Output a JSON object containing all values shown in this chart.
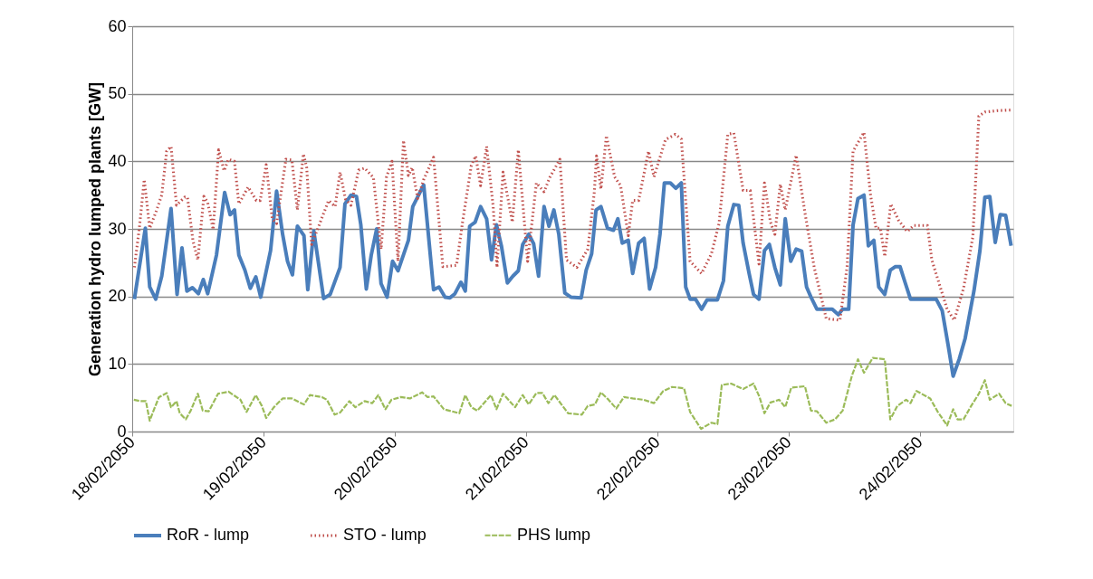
{
  "chart_data": {
    "type": "line",
    "ylabel": "Generation hydro lumped plants [GW]",
    "xlim": [
      "2050-02-18T00:00",
      "2050-02-24T17:06"
    ],
    "xticks": [
      {
        "value": "2050-02-18",
        "label": "18/02/2050"
      },
      {
        "value": "2050-02-19",
        "label": "19/02/2050"
      },
      {
        "value": "2050-02-20",
        "label": "20/02/2050"
      },
      {
        "value": "2050-02-21",
        "label": "21/02/2050"
      },
      {
        "value": "2050-02-22",
        "label": "22/02/2050"
      },
      {
        "value": "2050-02-23",
        "label": "23/02/2050"
      },
      {
        "value": "2050-02-24",
        "label": "24/02/2050"
      }
    ],
    "ylim": [
      0,
      60
    ],
    "yticks": [
      0,
      10,
      20,
      30,
      40,
      50,
      60
    ],
    "grid": "y",
    "legend": "bottom",
    "marker": "none",
    "series": [
      {
        "name": "RoR - lump",
        "color": "#4a7ebb",
        "line_style": "solid",
        "x": [
          "2050-02-18T00:24",
          "2050-02-18T02:24",
          "2050-02-18T03:12",
          "2050-02-18T04:18",
          "2050-02-18T05:24",
          "2050-02-18T07:06",
          "2050-02-18T08:12",
          "2050-02-18T09:06",
          "2050-02-18T10:00",
          "2050-02-18T11:00",
          "2050-02-18T12:06",
          "2050-02-18T13:00",
          "2050-02-18T13:48",
          "2050-02-18T15:24",
          "2050-02-18T16:54",
          "2050-02-18T17:54",
          "2050-02-18T18:42",
          "2050-02-18T19:30",
          "2050-02-18T20:36",
          "2050-02-18T21:36",
          "2050-02-18T22:36",
          "2050-02-18T23:30",
          "2050-02-19T01:18",
          "2050-02-19T02:24",
          "2050-02-19T03:30",
          "2050-02-19T04:24",
          "2050-02-19T05:18",
          "2050-02-19T06:12",
          "2050-02-19T07:24",
          "2050-02-19T08:06",
          "2050-02-19T09:12",
          "2050-02-19T11:00",
          "2050-02-19T12:12",
          "2050-02-19T14:00",
          "2050-02-19T14:54",
          "2050-02-19T16:00",
          "2050-02-19T17:00",
          "2050-02-19T17:48",
          "2050-02-19T18:48",
          "2050-02-19T19:42",
          "2050-02-19T20:42",
          "2050-02-19T21:30",
          "2050-02-19T22:36",
          "2050-02-19T23:36",
          "2050-02-20T00:36",
          "2050-02-20T02:30",
          "2050-02-20T03:18",
          "2050-02-20T05:18",
          "2050-02-20T07:06",
          "2050-02-20T08:06",
          "2050-02-20T09:12",
          "2050-02-20T10:06",
          "2050-02-20T11:00",
          "2050-02-20T12:06",
          "2050-02-20T12:54",
          "2050-02-20T13:42",
          "2050-02-20T14:42",
          "2050-02-20T15:42",
          "2050-02-20T16:48",
          "2050-02-20T17:42",
          "2050-02-20T18:36",
          "2050-02-20T19:30",
          "2050-02-20T20:36",
          "2050-02-20T21:36",
          "2050-02-20T22:36",
          "2050-02-20T23:24",
          "2050-02-21T00:30",
          "2050-02-21T01:24",
          "2050-02-21T02:18",
          "2050-02-21T03:18",
          "2050-02-21T04:12",
          "2050-02-21T05:06",
          "2050-02-21T06:00",
          "2050-02-21T07:06",
          "2050-02-21T08:12",
          "2050-02-21T10:06",
          "2050-02-21T11:00",
          "2050-02-21T12:00",
          "2050-02-21T12:48",
          "2050-02-21T13:42",
          "2050-02-21T14:54",
          "2050-02-21T16:00",
          "2050-02-21T16:48",
          "2050-02-21T17:36",
          "2050-02-21T18:42",
          "2050-02-21T19:30",
          "2050-02-21T20:36",
          "2050-02-21T21:36",
          "2050-02-21T22:36",
          "2050-02-21T23:42",
          "2050-02-22T00:30",
          "2050-02-22T01:18",
          "2050-02-22T02:24",
          "2050-02-22T03:24",
          "2050-02-22T04:24",
          "2050-02-22T05:12",
          "2050-02-22T06:00",
          "2050-02-22T07:00",
          "2050-02-22T08:06",
          "2050-02-22T09:06",
          "2050-02-22T11:00",
          "2050-02-22T12:06",
          "2050-02-22T12:54",
          "2050-02-22T14:00",
          "2050-02-22T14:54",
          "2050-02-22T15:42",
          "2050-02-22T16:48",
          "2050-02-22T17:36",
          "2050-02-22T18:36",
          "2050-02-22T19:36",
          "2050-02-22T20:30",
          "2050-02-22T21:30",
          "2050-02-22T22:30",
          "2050-02-22T23:24",
          "2050-02-23T00:24",
          "2050-02-23T01:24",
          "2050-02-23T02:24",
          "2050-02-23T03:18",
          "2050-02-23T04:06",
          "2050-02-23T05:12",
          "2050-02-23T08:00",
          "2050-02-23T09:06",
          "2050-02-23T09:54",
          "2050-02-23T11:00",
          "2050-02-23T11:48",
          "2050-02-23T12:42",
          "2050-02-23T13:48",
          "2050-02-23T14:36",
          "2050-02-23T15:36",
          "2050-02-23T16:30",
          "2050-02-23T17:36",
          "2050-02-23T18:36",
          "2050-02-23T19:30",
          "2050-02-23T20:24",
          "2050-02-23T21:18",
          "2050-02-23T22:18",
          "2050-02-24T03:00",
          "2050-02-24T04:06",
          "2050-02-24T05:12",
          "2050-02-24T06:06",
          "2050-02-24T07:12",
          "2050-02-24T08:18",
          "2050-02-24T09:54",
          "2050-02-24T11:00",
          "2050-02-24T11:54",
          "2050-02-24T12:48",
          "2050-02-24T13:48",
          "2050-02-24T14:42",
          "2050-02-24T15:42",
          "2050-02-24T16:42"
        ],
        "values": [
          19.6,
          30.1,
          21.4,
          19.6,
          23,
          33,
          20.3,
          27.2,
          20.8,
          21.3,
          20.4,
          22.5,
          20.4,
          26.1,
          35.4,
          32.1,
          32.8,
          26.1,
          23.9,
          21.2,
          22.9,
          19.9,
          26.8,
          35.6,
          29.2,
          25.2,
          23.2,
          30.4,
          29,
          21,
          29.7,
          19.7,
          20.3,
          24.3,
          33.7,
          35,
          34.8,
          30.6,
          21.1,
          26.1,
          30,
          21.9,
          19.9,
          25.2,
          23.8,
          28.3,
          33.3,
          36.5,
          21,
          21.4,
          19.9,
          19.8,
          20.4,
          22.1,
          20.8,
          30.4,
          31,
          33.3,
          31.5,
          25.4,
          30.6,
          27.5,
          22,
          23,
          23.8,
          27.7,
          29.2,
          27.8,
          23,
          33.3,
          30.4,
          32.8,
          29.2,
          20.5,
          19.9,
          19.8,
          23.9,
          26.3,
          32.8,
          33.3,
          30.1,
          29.8,
          31.5,
          27.9,
          28.3,
          23.4,
          27.9,
          28.6,
          21.1,
          24.3,
          29.2,
          36.8,
          36.8,
          36,
          36.8,
          21.4,
          19.6,
          19.6,
          18.1,
          19.5,
          19.5,
          22.3,
          30.4,
          33.6,
          33.5,
          27.9,
          23.4,
          20.3,
          19.6,
          26.8,
          27.7,
          24.3,
          21.7,
          31.5,
          25.2,
          27,
          26.7,
          21.4,
          19.9,
          18.1,
          18.1,
          17.3,
          18.1,
          18.1,
          30.6,
          34.5,
          35,
          27.5,
          28.3,
          21.4,
          20.3,
          23.9,
          24.4,
          24.4,
          22.1,
          19.6,
          19.6,
          17.9,
          12.7,
          8.2,
          10.7,
          13.8,
          20.8,
          26.8,
          34.7,
          34.8,
          28,
          32.1,
          32,
          27.5
        ]
      },
      {
        "name": "STO - lump",
        "color": "#c0504d",
        "line_style": "dotted",
        "x": [
          "2050-02-18T00:24",
          "2050-02-18T01:18",
          "2050-02-18T02:12",
          "2050-02-18T03:12",
          "2050-02-18T04:18",
          "2050-02-18T05:24",
          "2050-02-18T06:18",
          "2050-02-18T07:06",
          "2050-02-18T08:06",
          "2050-02-18T09:36",
          "2050-02-18T10:06",
          "2050-02-18T11:06",
          "2050-02-18T12:00",
          "2050-02-18T13:06",
          "2050-02-18T13:48",
          "2050-02-18T14:48",
          "2050-02-18T15:48",
          "2050-02-18T16:48",
          "2050-02-18T17:36",
          "2050-02-18T18:42",
          "2050-02-18T19:30",
          "2050-02-18T21:12",
          "2050-02-18T22:42",
          "2050-02-18T23:24",
          "2050-02-19T00:30",
          "2050-02-19T01:36",
          "2050-02-19T02:24",
          "2050-02-19T04:06",
          "2050-02-19T05:12",
          "2050-02-19T06:12",
          "2050-02-19T07:18",
          "2050-02-19T07:54",
          "2050-02-19T08:48",
          "2050-02-19T10:12",
          "2050-02-19T11:54",
          "2050-02-19T13:06",
          "2050-02-19T14:00",
          "2050-02-19T15:00",
          "2050-02-19T16:00",
          "2050-02-19T17:24",
          "2050-02-19T18:30",
          "2050-02-19T20:06",
          "2050-02-19T21:30",
          "2050-02-19T22:30",
          "2050-02-19T23:30",
          "2050-02-20T00:36",
          "2050-02-20T01:36",
          "2050-02-20T02:30",
          "2050-02-20T03:12",
          "2050-02-20T04:12",
          "2050-02-20T05:18",
          "2050-02-20T07:06",
          "2050-02-20T08:48",
          "2050-02-20T11:18",
          "2050-02-20T12:24",
          "2050-02-20T14:00",
          "2050-02-20T14:48",
          "2050-02-20T15:42",
          "2050-02-20T16:48",
          "2050-02-20T18:00",
          "2050-02-20T18:42",
          "2050-02-20T19:48",
          "2050-02-20T21:30",
          "2050-02-20T22:36",
          "2050-02-21T00:18",
          "2050-02-21T01:54",
          "2050-02-21T03:18",
          "2050-02-21T04:24",
          "2050-02-21T06:12",
          "2050-02-21T07:24",
          "2050-02-21T09:18",
          "2050-02-21T11:18",
          "2050-02-21T12:30",
          "2050-02-21T12:54",
          "2050-02-21T13:42",
          "2050-02-21T14:42",
          "2050-02-21T16:12",
          "2050-02-21T17:18",
          "2050-02-21T18:42",
          "2050-02-21T19:30",
          "2050-02-21T20:36",
          "2050-02-21T22:24",
          "2050-02-21T23:24",
          "2050-02-22T01:30",
          "2050-02-22T03:18",
          "2050-02-22T04:24",
          "2050-02-22T06:00",
          "2050-02-22T08:06",
          "2050-02-22T09:54",
          "2050-02-22T11:18",
          "2050-02-22T12:54",
          "2050-02-22T14:00",
          "2050-02-22T15:42",
          "2050-02-22T17:00",
          "2050-02-22T18:36",
          "2050-02-22T19:36",
          "2050-02-22T20:42",
          "2050-02-22T21:30",
          "2050-02-22T22:30",
          "2050-02-22T23:24",
          "2050-02-23T01:24",
          "2050-02-23T03:00",
          "2050-02-23T04:42",
          "2050-02-23T06:54",
          "2050-02-23T09:24",
          "2050-02-23T10:42",
          "2050-02-23T11:48",
          "2050-02-23T13:48",
          "2050-02-23T15:00",
          "2050-02-23T16:00",
          "2050-02-23T16:48",
          "2050-02-23T17:36",
          "2050-02-23T18:42",
          "2050-02-23T20:06",
          "2050-02-23T21:42",
          "2050-02-23T22:54",
          "2050-02-24T01:24",
          "2050-02-24T02:12",
          "2050-02-24T05:00",
          "2050-02-24T06:18",
          "2050-02-24T08:00",
          "2050-02-24T09:42",
          "2050-02-24T10:48",
          "2050-02-24T11:54",
          "2050-02-24T14:06",
          "2050-02-24T16:42"
        ],
        "values": [
          24.3,
          30.1,
          37.3,
          30.1,
          32.4,
          35,
          41.5,
          42.2,
          33.5,
          34.7,
          34.7,
          28.3,
          25.4,
          34.8,
          33.9,
          29.9,
          41.7,
          38.6,
          40.3,
          40,
          33.7,
          36.2,
          34.2,
          34.2,
          39.5,
          31.5,
          30.8,
          40.3,
          40.2,
          32.8,
          41.1,
          39.1,
          27.7,
          30.6,
          34.2,
          33.3,
          38.4,
          34.4,
          33.5,
          38.7,
          39,
          37.6,
          27,
          37.7,
          40,
          25.2,
          43.1,
          37.9,
          39.1,
          34.5,
          37.3,
          40.6,
          24.4,
          24.6,
          31,
          39.4,
          40.8,
          36.4,
          42.2,
          33.3,
          24.3,
          38.4,
          31,
          41.7,
          25.2,
          36.8,
          35.5,
          37.7,
          40.3,
          25.4,
          24.3,
          27,
          35.5,
          40.8,
          35.9,
          43.8,
          37.7,
          36.4,
          29,
          34.2,
          34.2,
          41.5,
          37.7,
          43.2,
          44,
          43.3,
          25.2,
          23.4,
          26.3,
          30.8,
          44,
          44.2,
          35.7,
          35.7,
          24.8,
          36.8,
          31,
          29.2,
          36.6,
          32.8,
          40.9,
          32.4,
          24.3,
          16.7,
          16.5,
          24.3,
          41.5,
          44.3,
          35,
          30.1,
          30.1,
          25.9,
          33.7,
          31.3,
          29.6,
          30.5,
          30.5,
          25.4,
          18.1,
          16.5,
          21.2,
          28.8,
          46.7,
          47.3,
          47.5,
          47.6
        ]
      },
      {
        "name": "PHS lump",
        "color": "#9bbb59",
        "line_style": "dashed",
        "x": [
          "2050-02-18T00:18",
          "2050-02-18T01:30",
          "2050-02-18T02:30",
          "2050-02-18T03:12",
          "2050-02-18T04:00",
          "2050-02-18T04:54",
          "2050-02-18T06:18",
          "2050-02-18T07:06",
          "2050-02-18T08:06",
          "2050-02-18T08:42",
          "2050-02-18T09:48",
          "2050-02-18T10:42",
          "2050-02-18T12:00",
          "2050-02-18T12:54",
          "2050-02-18T14:00",
          "2050-02-18T15:42",
          "2050-02-18T17:36",
          "2050-02-18T19:48",
          "2050-02-18T20:54",
          "2050-02-18T22:36",
          "2050-02-18T23:42",
          "2050-02-19T00:30",
          "2050-02-19T01:54",
          "2050-02-19T03:30",
          "2050-02-19T05:12",
          "2050-02-19T07:24",
          "2050-02-19T08:30",
          "2050-02-19T10:42",
          "2050-02-19T11:36",
          "2050-02-19T13:00",
          "2050-02-19T14:00",
          "2050-02-19T15:42",
          "2050-02-19T16:48",
          "2050-02-19T18:30",
          "2050-02-19T19:54",
          "2050-02-19T21:00",
          "2050-02-19T22:18",
          "2050-02-19T23:24",
          "2050-02-20T01:06",
          "2050-02-20T02:48",
          "2050-02-20T05:00",
          "2050-02-20T06:00",
          "2050-02-20T07:06",
          "2050-02-20T09:00",
          "2050-02-20T11:48",
          "2050-02-20T12:54",
          "2050-02-20T14:00",
          "2050-02-20T15:06",
          "2050-02-20T17:36",
          "2050-02-20T18:36",
          "2050-02-20T19:48",
          "2050-02-20T22:00",
          "2050-02-20T23:24",
          "2050-02-21T00:30",
          "2050-02-21T01:54",
          "2050-02-21T03:00",
          "2050-02-21T04:06",
          "2050-02-21T05:12",
          "2050-02-21T07:42",
          "2050-02-21T10:12",
          "2050-02-21T11:18",
          "2050-02-21T12:36",
          "2050-02-21T13:42",
          "2050-02-21T15:06",
          "2050-02-21T16:30",
          "2050-02-21T17:54",
          "2050-02-21T19:30",
          "2050-02-21T21:30",
          "2050-02-21T23:24",
          "2050-02-22T01:06",
          "2050-02-22T02:42",
          "2050-02-22T04:54",
          "2050-02-22T06:00",
          "2050-02-22T08:00",
          "2050-02-22T09:54",
          "2050-02-22T11:00",
          "2050-02-22T11:48",
          "2050-02-22T13:30",
          "2050-02-22T15:42",
          "2050-02-22T17:36",
          "2050-02-22T18:42",
          "2050-02-22T19:36",
          "2050-02-22T20:42",
          "2050-02-22T22:18",
          "2050-02-22T23:24",
          "2050-02-23T00:30",
          "2050-02-23T03:00",
          "2050-02-23T04:06",
          "2050-02-23T05:12",
          "2050-02-23T06:54",
          "2050-02-23T08:30",
          "2050-02-23T09:54",
          "2050-02-23T11:36",
          "2050-02-23T12:42",
          "2050-02-23T13:48",
          "2050-02-23T15:24",
          "2050-02-23T17:36",
          "2050-02-23T18:36",
          "2050-02-23T19:54",
          "2050-02-23T21:30",
          "2050-02-23T22:18",
          "2050-02-23T23:24",
          "2050-02-24T01:54",
          "2050-02-24T03:18",
          "2050-02-24T05:00",
          "2050-02-24T06:06",
          "2050-02-24T06:54",
          "2050-02-24T08:00",
          "2050-02-24T09:24",
          "2050-02-24T10:48",
          "2050-02-24T11:54",
          "2050-02-24T12:48",
          "2050-02-24T14:30",
          "2050-02-24T15:42",
          "2050-02-24T16:48"
        ],
        "values": [
          4.7,
          4.5,
          4.5,
          1.6,
          3.3,
          5.1,
          5.7,
          3.6,
          4.5,
          2.7,
          1.8,
          3.1,
          5.6,
          3.1,
          3,
          5.6,
          5.9,
          4.7,
          2.9,
          5.4,
          3.8,
          2,
          3.6,
          4.9,
          4.9,
          4,
          5.4,
          5.1,
          4.7,
          2.5,
          2.8,
          4.5,
          3.6,
          4.5,
          4.2,
          5.4,
          3.3,
          4.7,
          5.1,
          4.9,
          5.8,
          5.1,
          5.2,
          3.3,
          2.7,
          5.4,
          3.6,
          3.1,
          5.4,
          3.3,
          5.6,
          3.6,
          5.4,
          4,
          5.7,
          5.7,
          4.2,
          5.4,
          2.7,
          2.5,
          3.8,
          4,
          5.8,
          4.7,
          3.4,
          5.1,
          4.9,
          4.7,
          4.2,
          6,
          6.6,
          6.4,
          2.9,
          0.4,
          1.3,
          1.1,
          6.9,
          7.1,
          6.3,
          7.1,
          5.1,
          2.7,
          4.3,
          4.7,
          3.6,
          6.5,
          6.7,
          3.1,
          3,
          1.3,
          1.8,
          3.1,
          8.3,
          10.7,
          8.7,
          10.9,
          10.7,
          1.8,
          3.8,
          4.7,
          4.2,
          6,
          4.9,
          2.9,
          0.9,
          3.3,
          1.8,
          1.8,
          3.8,
          5.6,
          7.6,
          4.7,
          5.6,
          4.2,
          3.8
        ]
      }
    ]
  }
}
